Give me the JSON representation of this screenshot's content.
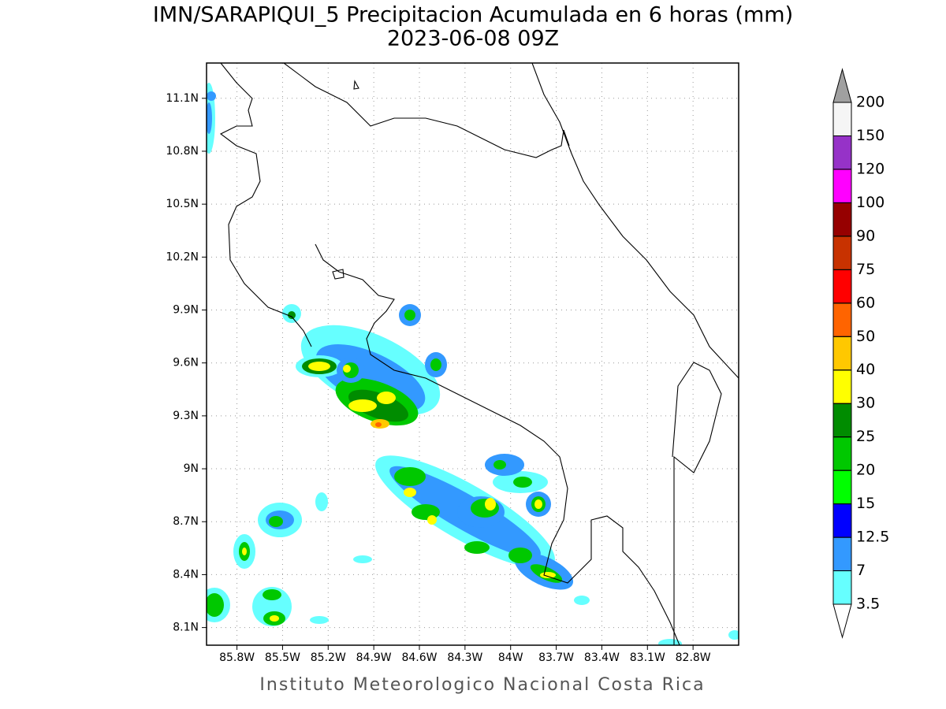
{
  "title": "IMN/SARAPIQUI_5 Precipitacion Acumulada en 6 horas (mm)",
  "subtitle": "2023-06-08 09Z",
  "map": {
    "xlim": [
      -86.0,
      -82.5
    ],
    "ylim": [
      8.0,
      11.3
    ],
    "grid": true,
    "xticks": [
      {
        "value": -85.8,
        "label": "85.8W"
      },
      {
        "value": -85.5,
        "label": "85.5W"
      },
      {
        "value": -85.2,
        "label": "85.2W"
      },
      {
        "value": -84.9,
        "label": "84.9W"
      },
      {
        "value": -84.6,
        "label": "84.6W"
      },
      {
        "value": -84.3,
        "label": "84.3W"
      },
      {
        "value": -84.0,
        "label": "84W"
      },
      {
        "value": -83.7,
        "label": "83.7W"
      },
      {
        "value": -83.4,
        "label": "83.4W"
      },
      {
        "value": -83.1,
        "label": "83.1W"
      },
      {
        "value": -82.8,
        "label": "82.8W"
      }
    ],
    "yticks": [
      {
        "value": 8.1,
        "label": "8.1N"
      },
      {
        "value": 8.4,
        "label": "8.4N"
      },
      {
        "value": 8.7,
        "label": "8.7N"
      },
      {
        "value": 9.0,
        "label": "9N"
      },
      {
        "value": 9.3,
        "label": "9.3N"
      },
      {
        "value": 9.6,
        "label": "9.6N"
      },
      {
        "value": 9.9,
        "label": "9.9N"
      },
      {
        "value": 10.2,
        "label": "10.2N"
      },
      {
        "value": 10.5,
        "label": "10.5N"
      },
      {
        "value": 10.8,
        "label": "10.8N"
      },
      {
        "value": 11.1,
        "label": "11.1N"
      }
    ]
  },
  "colorbar": {
    "levels": [
      3.5,
      7,
      12.5,
      15,
      20,
      25,
      30,
      40,
      50,
      60,
      75,
      90,
      100,
      120,
      150,
      200
    ],
    "colors": [
      "#66ffff",
      "#3399ff",
      "#0000ff",
      "#00ff00",
      "#00c800",
      "#008c00",
      "#ffff00",
      "#ffc800",
      "#ff6400",
      "#ff0000",
      "#c83200",
      "#960000",
      "#ff00ff",
      "#9632c8",
      "#f5f5f5"
    ],
    "under_color": "#ffffff",
    "over_color": "#a0a0a0"
  },
  "footer": "Instituto Meteorologico Nacional Costa Rica"
}
